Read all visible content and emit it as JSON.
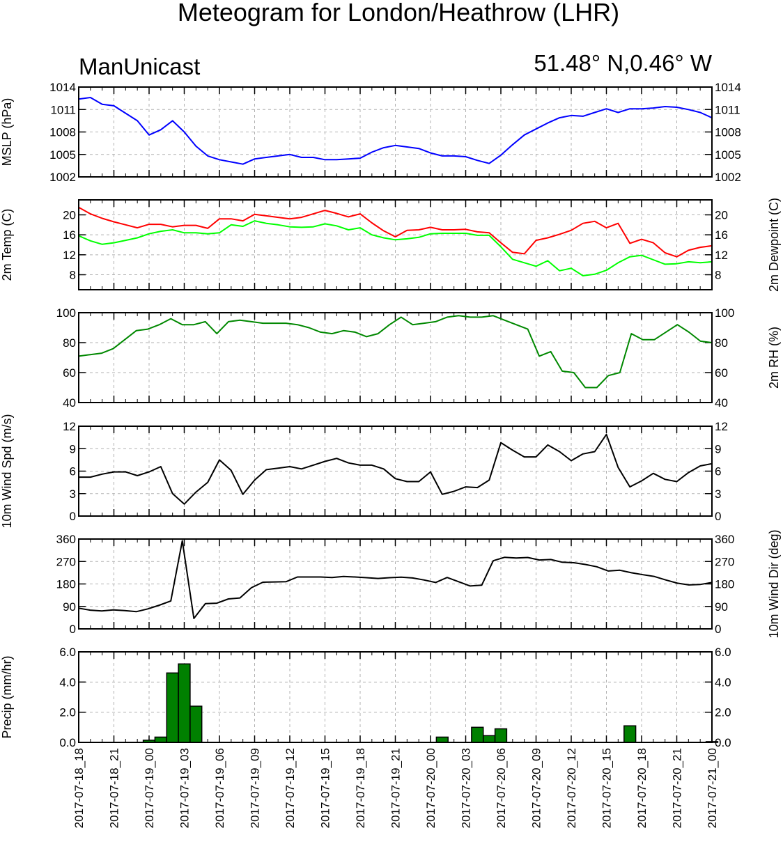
{
  "title": "Meteogram for London/Heathrow (LHR)",
  "left_subtitle": "ManUnicast",
  "right_subtitle": "51.48° N,0.46° W",
  "chart_data": [
    {
      "type": "line",
      "panel": "mslp",
      "ylabel": "MSLP (hPa)",
      "ylim": [
        1002,
        1014
      ],
      "yticks": [
        1002,
        1005,
        1008,
        1011,
        1014
      ],
      "yticks_right": [
        1002,
        1005,
        1008,
        1011,
        1014
      ],
      "grid": true,
      "series": [
        {
          "color": "#0000ff",
          "values": [
            1012.4,
            1012.6,
            1011.7,
            1011.5,
            1010.5,
            1009.5,
            1007.6,
            1008.3,
            1009.5,
            1008.0,
            1006.1,
            1004.8,
            1004.3,
            1004.0,
            1003.7,
            1004.4,
            1004.6,
            1004.8,
            1005.0,
            1004.6,
            1004.6,
            1004.3,
            1004.3,
            1004.4,
            1004.5,
            1005.3,
            1005.9,
            1006.2,
            1006.0,
            1005.8,
            1005.2,
            1004.8,
            1004.8,
            1004.7,
            1004.2,
            1003.8,
            1004.9,
            1006.3,
            1007.6,
            1008.4,
            1009.2,
            1009.9,
            1010.2,
            1010.1,
            1010.6,
            1011.1,
            1010.6,
            1011.1,
            1011.1,
            1011.2,
            1011.4,
            1011.3,
            1011.0,
            1010.6,
            1009.9
          ]
        }
      ]
    },
    {
      "type": "line",
      "panel": "temp",
      "ylabel": "2m Temp (C)",
      "ylabel_right": "2m Dewpoint (C)",
      "ylim": [
        5,
        23
      ],
      "yticks": [
        8,
        12,
        16,
        20
      ],
      "yticks_right": [
        8,
        12,
        16,
        20
      ],
      "grid": true,
      "series": [
        {
          "color": "#ff0000",
          "values": [
            21.5,
            20.2,
            19.3,
            18.6,
            18.0,
            17.4,
            18.1,
            18.1,
            17.6,
            17.9,
            17.9,
            17.3,
            19.2,
            19.2,
            18.8,
            20.1,
            19.8,
            19.5,
            19.2,
            19.5,
            20.2,
            20.9,
            20.3,
            19.6,
            20.2,
            18.4,
            16.8,
            15.6,
            16.9,
            17.0,
            17.5,
            17.0,
            17.0,
            17.1,
            16.6,
            16.4,
            14.4,
            12.5,
            12.2,
            14.9,
            15.4,
            16.1,
            16.9,
            18.3,
            18.7,
            17.4,
            18.3,
            14.3,
            15.1,
            14.4,
            12.4,
            11.6,
            12.9,
            13.5,
            13.8
          ]
        },
        {
          "color": "#00ff00",
          "values": [
            15.8,
            14.8,
            14.1,
            14.4,
            14.9,
            15.4,
            16.2,
            16.7,
            17.0,
            16.4,
            16.4,
            16.2,
            16.4,
            18.0,
            17.7,
            18.8,
            18.3,
            18.0,
            17.6,
            17.5,
            17.6,
            18.2,
            17.8,
            17.0,
            17.4,
            16.0,
            15.4,
            15.0,
            15.2,
            15.5,
            16.2,
            16.3,
            16.3,
            16.3,
            15.9,
            15.9,
            13.6,
            11.1,
            10.4,
            9.7,
            10.8,
            8.8,
            9.3,
            7.8,
            8.1,
            8.9,
            10.4,
            11.6,
            11.9,
            11.0,
            10.1,
            10.2,
            10.6,
            10.4,
            10.6
          ]
        }
      ]
    },
    {
      "type": "line",
      "panel": "rh",
      "ylabel_right": "2m RH (%)",
      "ylim": [
        40,
        100
      ],
      "yticks": [
        40,
        60,
        80,
        100
      ],
      "yticks_right": [
        40,
        60,
        80,
        100
      ],
      "grid": true,
      "series": [
        {
          "color": "#008800",
          "values": [
            71,
            72,
            73,
            76,
            82,
            88,
            89,
            92,
            96,
            92,
            92,
            94,
            86,
            94,
            95,
            94,
            93,
            93,
            93,
            92,
            90,
            87,
            86,
            88,
            87,
            84,
            86,
            92,
            97,
            92,
            93,
            94,
            97,
            98,
            97,
            97,
            98,
            95,
            92,
            89,
            71,
            74,
            61,
            60,
            50,
            50,
            58,
            60,
            86,
            82,
            82,
            87,
            92,
            87,
            81,
            80
          ]
        }
      ]
    },
    {
      "type": "line",
      "panel": "wind_speed",
      "ylabel": "10m Wind Spd (m/s)",
      "ylim": [
        0,
        12
      ],
      "yticks": [
        0,
        3,
        6,
        9,
        12
      ],
      "yticks_right": [
        0,
        3,
        6,
        9,
        12
      ],
      "grid": true,
      "series": [
        {
          "color": "#000000",
          "values": [
            5.2,
            5.2,
            5.6,
            5.9,
            5.9,
            5.4,
            5.9,
            6.6,
            3.0,
            1.6,
            3.2,
            4.5,
            7.5,
            6.1,
            2.9,
            4.8,
            6.2,
            6.4,
            6.6,
            6.3,
            6.8,
            7.3,
            7.7,
            7.1,
            6.8,
            6.8,
            6.3,
            5.0,
            4.6,
            4.6,
            5.9,
            2.9,
            3.3,
            3.9,
            3.8,
            4.8,
            9.8,
            8.8,
            7.9,
            7.9,
            9.5,
            8.6,
            7.4,
            8.3,
            8.6,
            10.9,
            6.5,
            3.9,
            4.7,
            5.7,
            4.9,
            4.6,
            5.8,
            6.7,
            7.0
          ]
        }
      ]
    },
    {
      "type": "line",
      "panel": "wind_dir",
      "ylabel_right": "10m Wind Dir (deg)",
      "ylim": [
        0,
        360
      ],
      "yticks": [
        0,
        90,
        180,
        270,
        360
      ],
      "yticks_right": [
        0,
        90,
        180,
        270,
        360
      ],
      "grid": true,
      "series": [
        {
          "color": "#000000",
          "values": [
            83,
            75,
            72,
            76,
            73,
            69,
            80,
            95,
            112,
            353,
            42,
            101,
            103,
            120,
            124,
            165,
            187,
            188,
            189,
            208,
            208,
            208,
            206,
            210,
            208,
            205,
            202,
            205,
            207,
            204,
            196,
            186,
            206,
            189,
            172,
            175,
            273,
            287,
            284,
            286,
            276,
            278,
            267,
            265,
            258,
            249,
            232,
            235,
            225,
            217,
            210,
            196,
            183,
            176,
            178,
            186
          ]
        }
      ]
    },
    {
      "type": "bar",
      "panel": "precip",
      "ylabel": "Precip (mm/hr)",
      "ylim": [
        0,
        6
      ],
      "yticks": [
        "0.0",
        "2.0",
        "4.0",
        "6.0"
      ],
      "yticks_right": [
        "0.0",
        "2.0",
        "4.0",
        "6.0"
      ],
      "grid": true,
      "bar_color": "#008000",
      "values": [
        0,
        0,
        0,
        0,
        0,
        0,
        0.15,
        0.35,
        4.6,
        5.2,
        2.4,
        0,
        0,
        0,
        0,
        0,
        0,
        0,
        0,
        0,
        0,
        0,
        0,
        0,
        0,
        0,
        0,
        0,
        0,
        0,
        0,
        0.35,
        0,
        0,
        1.0,
        0.45,
        0.9,
        0,
        0,
        0,
        0,
        0,
        0,
        0,
        0,
        0,
        0,
        1.1,
        0,
        0,
        0,
        0,
        0,
        0,
        0.05
      ]
    }
  ],
  "x_axis": {
    "labels": [
      "2017-07-18_18",
      "2017-07-18_21",
      "2017-07-19_00",
      "2017-07-19_03",
      "2017-07-19_06",
      "2017-07-19_09",
      "2017-07-19_12",
      "2017-07-19_15",
      "2017-07-19_18",
      "2017-07-19_21",
      "2017-07-20_00",
      "2017-07-20_03",
      "2017-07-20_06",
      "2017-07-20_09",
      "2017-07-20_12",
      "2017-07-20_15",
      "2017-07-20_18",
      "2017-07-20_21",
      "2017-07-21_00"
    ]
  }
}
